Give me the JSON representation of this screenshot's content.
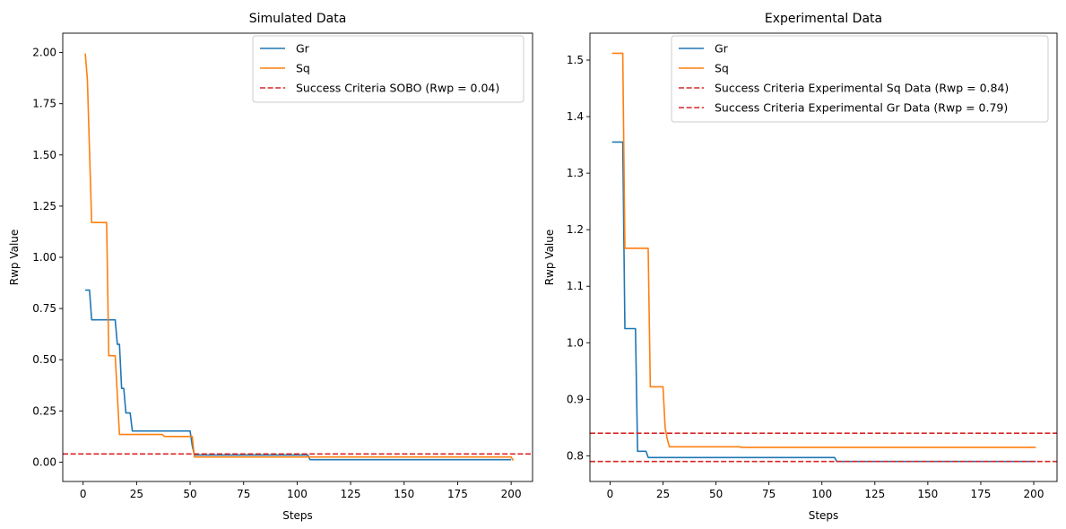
{
  "chart_data": [
    {
      "type": "line",
      "title": "Simulated Data",
      "xlabel": "Steps",
      "ylabel": "Rwp Value",
      "xlim": [
        -9.5,
        210
      ],
      "ylim": [
        -0.0945,
        2.0945
      ],
      "xticks": [
        0,
        25,
        50,
        75,
        100,
        125,
        150,
        175,
        200
      ],
      "yticks": [
        0.0,
        0.25,
        0.5,
        0.75,
        1.0,
        1.25,
        1.5,
        1.75,
        2.0
      ],
      "ytick_decimals": 2,
      "legend_position": "upper right",
      "grid": false,
      "series": [
        {
          "name": "Gr",
          "color": "#1f77b4",
          "style": "solid",
          "points": [
            [
              1,
              0.84
            ],
            [
              3,
              0.84
            ],
            [
              4,
              0.695
            ],
            [
              15,
              0.695
            ],
            [
              16,
              0.575
            ],
            [
              17,
              0.575
            ],
            [
              18,
              0.36
            ],
            [
              19,
              0.36
            ],
            [
              20,
              0.24
            ],
            [
              22,
              0.24
            ],
            [
              23,
              0.152
            ],
            [
              50,
              0.152
            ],
            [
              51,
              0.08
            ],
            [
              52,
              0.035
            ],
            [
              105,
              0.035
            ],
            [
              106,
              0.012
            ],
            [
              200,
              0.012
            ]
          ]
        },
        {
          "name": "Sq",
          "color": "#ff7f0e",
          "style": "solid",
          "points": [
            [
              1,
              1.995
            ],
            [
              2,
              1.87
            ],
            [
              4,
              1.17
            ],
            [
              11,
              1.17
            ],
            [
              12,
              0.52
            ],
            [
              15,
              0.52
            ],
            [
              17,
              0.135
            ],
            [
              37,
              0.135
            ],
            [
              38,
              0.125
            ],
            [
              51,
              0.125
            ],
            [
              52,
              0.025
            ],
            [
              200,
              0.025
            ],
            [
              201,
              0.008
            ]
          ]
        },
        {
          "name": "Success Criteria SOBO (Rwp = 0.04)",
          "color": "#d62728",
          "style": "dashed",
          "hline": 0.04
        }
      ]
    },
    {
      "type": "line",
      "title": "Experimental Data",
      "xlabel": "Steps",
      "ylabel": "Rwp Value",
      "xlim": [
        -9.5,
        211
      ],
      "ylim": [
        0.7546,
        1.5476
      ],
      "xticks": [
        0,
        25,
        50,
        75,
        100,
        125,
        150,
        175,
        200
      ],
      "yticks": [
        0.8,
        0.9,
        1.0,
        1.1,
        1.2,
        1.3,
        1.4,
        1.5
      ],
      "ytick_decimals": 1,
      "legend_position": "upper right",
      "grid": false,
      "series": [
        {
          "name": "Gr",
          "color": "#1f77b4",
          "style": "solid",
          "points": [
            [
              1,
              1.355
            ],
            [
              6,
              1.355
            ],
            [
              7,
              1.025
            ],
            [
              12,
              1.025
            ],
            [
              13,
              0.808
            ],
            [
              17,
              0.808
            ],
            [
              18,
              0.797
            ],
            [
              106,
              0.797
            ],
            [
              107,
              0.79
            ],
            [
              201,
              0.79
            ]
          ]
        },
        {
          "name": "Sq",
          "color": "#ff7f0e",
          "style": "solid",
          "points": [
            [
              1,
              1.512
            ],
            [
              6,
              1.512
            ],
            [
              7,
              1.167
            ],
            [
              18,
              1.167
            ],
            [
              19,
              0.922
            ],
            [
              25,
              0.922
            ],
            [
              26,
              0.85
            ],
            [
              27,
              0.83
            ],
            [
              28,
              0.816
            ],
            [
              61,
              0.816
            ],
            [
              62,
              0.815
            ],
            [
              201,
              0.815
            ]
          ]
        },
        {
          "name": "Success Criteria Experimental Sq Data (Rwp = 0.84)",
          "color": "#d62728",
          "style": "dashed",
          "hline": 0.84
        },
        {
          "name": "Success Criteria Experimental Gr Data (Rwp = 0.79)",
          "color": "#d62728",
          "style": "dashed",
          "hline": 0.79
        }
      ]
    }
  ]
}
